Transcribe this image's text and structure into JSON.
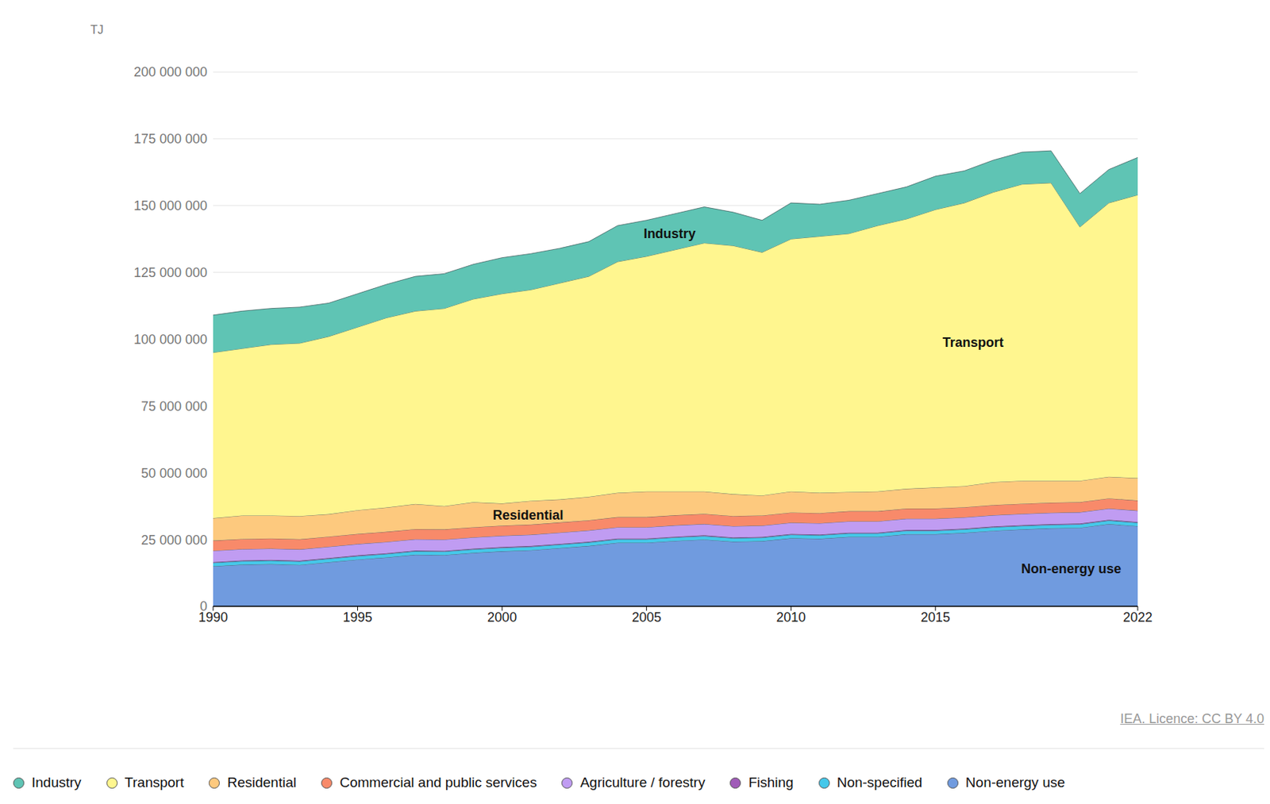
{
  "chart_data": {
    "type": "area",
    "stacked": true,
    "grid": true,
    "legend": "bottom",
    "y_label": "TJ",
    "source": "IEA. Licence: CC BY 4.0",
    "x": [
      1990,
      1991,
      1992,
      1993,
      1994,
      1995,
      1996,
      1997,
      1998,
      1999,
      2000,
      2001,
      2002,
      2003,
      2004,
      2005,
      2006,
      2007,
      2008,
      2009,
      2010,
      2011,
      2012,
      2013,
      2014,
      2015,
      2016,
      2017,
      2018,
      2019,
      2020,
      2021,
      2022
    ],
    "xlim": [
      1990,
      2022
    ],
    "xticks": [
      1990,
      1995,
      2000,
      2005,
      2010,
      2015,
      2022
    ],
    "ylim": [
      0,
      200000000
    ],
    "yticks": [
      0,
      {
        "value": 25000000,
        "label": "25 000 000"
      },
      {
        "value": 50000000,
        "label": "50 000 000"
      },
      {
        "value": 75000000,
        "label": "75 000 000"
      },
      {
        "value": 100000000,
        "label": "100 000 000"
      },
      {
        "value": 125000000,
        "label": "125 000 000"
      },
      {
        "value": 150000000,
        "label": "150 000 000"
      },
      {
        "value": 175000000,
        "label": "175 000 000"
      },
      {
        "value": 200000000,
        "label": "200 000 000"
      }
    ],
    "series": [
      {
        "name": "Industry",
        "color": "#5fc4b4",
        "values": [
          14000000,
          14000000,
          13500000,
          13500000,
          12500000,
          12500000,
          12500000,
          13000000,
          13000000,
          13000000,
          13500000,
          13500000,
          13000000,
          13000000,
          13500000,
          13500000,
          13500000,
          13500000,
          12500000,
          12000000,
          13500000,
          12000000,
          12500000,
          12000000,
          12000000,
          12500000,
          12000000,
          12000000,
          12000000,
          12000000,
          12500000,
          12500000,
          14000000
        ]
      },
      {
        "name": "Transport",
        "color": "#fff68f",
        "values": [
          62000000,
          62500000,
          64000000,
          64700000,
          66500000,
          68500000,
          71000000,
          72200000,
          74000000,
          76000000,
          78500000,
          79000000,
          81000000,
          82500000,
          86500000,
          88000000,
          90500000,
          93000000,
          93000000,
          91000000,
          94500000,
          96000000,
          96700000,
          99500000,
          101000000,
          104000000,
          106000000,
          108500000,
          111000000,
          111500000,
          95000000,
          102500000,
          106000000
        ]
      },
      {
        "name": "Residential",
        "color": "#fdc97e",
        "values": [
          8400000,
          8800000,
          8600000,
          8700000,
          8400000,
          8900000,
          9100000,
          9400000,
          8700000,
          9400000,
          8300000,
          8900000,
          8600000,
          8800000,
          9100000,
          9600000,
          8900000,
          8400000,
          8200000,
          7500000,
          7900000,
          7600000,
          7200000,
          7400000,
          7400000,
          7900000,
          7900000,
          8600000,
          8600000,
          8200000,
          8000000,
          8100000,
          8400000
        ]
      },
      {
        "name": "Commercial and public services",
        "color": "#f88a6a",
        "values": [
          3800000,
          3800000,
          3800000,
          3800000,
          3800000,
          3800000,
          3800000,
          3800000,
          3800000,
          3800000,
          3800000,
          3800000,
          3800000,
          3800000,
          3800000,
          3800000,
          3800000,
          3800000,
          3800000,
          3800000,
          3800000,
          3800000,
          3800000,
          3800000,
          3800000,
          3800000,
          3800000,
          3800000,
          3800000,
          3800000,
          3800000,
          3800000,
          3800000
        ]
      },
      {
        "name": "Agriculture / forestry",
        "color": "#c09cf2",
        "values": [
          4200000,
          4200000,
          4200000,
          4200000,
          4200000,
          4200000,
          4200000,
          4200000,
          4200000,
          4200000,
          4200000,
          4200000,
          4200000,
          4200000,
          4200000,
          4200000,
          4200000,
          4200000,
          4200000,
          4200000,
          4200000,
          4200000,
          4200000,
          4200000,
          4200000,
          4200000,
          4200000,
          4200000,
          4200000,
          4200000,
          4200000,
          4200000,
          4200000
        ]
      },
      {
        "name": "Fishing",
        "color": "#a05bb8",
        "values": [
          300000,
          300000,
          300000,
          300000,
          300000,
          300000,
          300000,
          300000,
          300000,
          300000,
          300000,
          300000,
          300000,
          300000,
          300000,
          300000,
          300000,
          300000,
          300000,
          300000,
          300000,
          300000,
          300000,
          300000,
          300000,
          300000,
          300000,
          300000,
          300000,
          300000,
          300000,
          300000,
          300000
        ]
      },
      {
        "name": "Non-specified",
        "color": "#45c8ea",
        "values": [
          1300000,
          1300000,
          1300000,
          1300000,
          1300000,
          1300000,
          1300000,
          1300000,
          1300000,
          1300000,
          1300000,
          1300000,
          1300000,
          1300000,
          1300000,
          1300000,
          1300000,
          1300000,
          1300000,
          1300000,
          1300000,
          1300000,
          1300000,
          1300000,
          1300000,
          1300000,
          1300000,
          1300000,
          1300000,
          1300000,
          1300000,
          1300000,
          1300000
        ]
      },
      {
        "name": "Non-energy use",
        "color": "#709bdf",
        "values": [
          15000000,
          15600000,
          15800000,
          15500000,
          16500000,
          17500000,
          18300000,
          19300000,
          19200000,
          20000000,
          20600000,
          21000000,
          21800000,
          22600000,
          23800000,
          23800000,
          24500000,
          25000000,
          24200000,
          24400000,
          25500000,
          25300000,
          26000000,
          26000000,
          27000000,
          27000000,
          27500000,
          28300000,
          28800000,
          29200000,
          29400000,
          30800000,
          30000000
        ]
      }
    ],
    "annotations": [
      {
        "text": "Industry",
        "x": 2005.8,
        "y": 139700000
      },
      {
        "text": "Transport",
        "x": 2016.3,
        "y": 98800000
      },
      {
        "text": "Residential",
        "x": 2000.9,
        "y": 34200000
      },
      {
        "text": "Non-energy use",
        "x": 2019.7,
        "y": 14200000
      }
    ]
  }
}
